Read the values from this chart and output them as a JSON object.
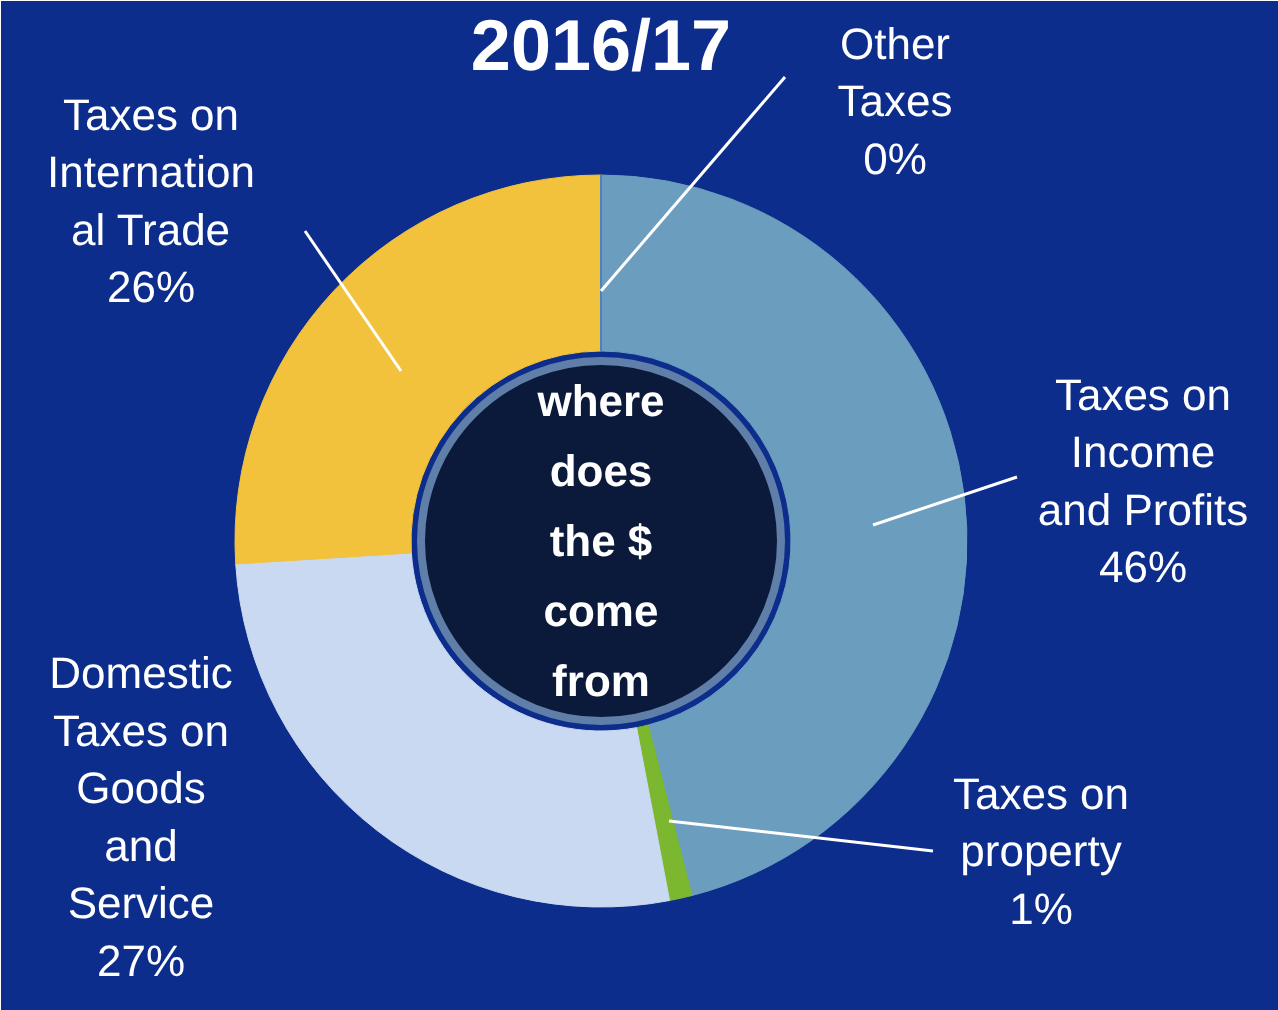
{
  "chart_data": {
    "type": "donut",
    "title": "2016/17",
    "categories": [
      "Taxes on\nIncome\nand Profits",
      "Taxes on\nproperty",
      "Domestic\nTaxes on\nGoods\nand\nService",
      "Taxes on\nInternation\nal Trade",
      "Other\nTaxes"
    ],
    "values": [
      46,
      1,
      27,
      26,
      0
    ],
    "value_labels": [
      "46%",
      "1%",
      "27%",
      "26%",
      "0%"
    ],
    "colors": [
      "#6b9dbf",
      "#7cb82f",
      "#c9d9f2",
      "#f2c23c",
      "#4f81bd"
    ],
    "annotations": [
      "where\ndoes\nthe $\ncome\nfrom"
    ]
  }
}
